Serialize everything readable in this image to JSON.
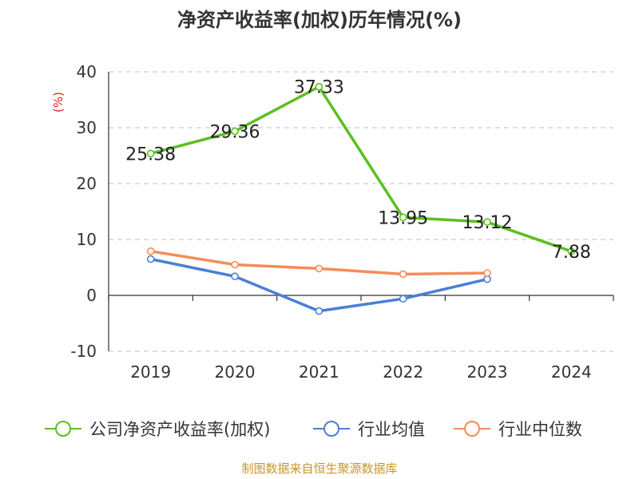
{
  "chart_data": {
    "type": "line",
    "title": "净资产收益率(加权)历年情况(%)",
    "y_unit": "(%)",
    "categories": [
      "2019",
      "2020",
      "2021",
      "2022",
      "2023",
      "2024"
    ],
    "ylim": [
      -10,
      40
    ],
    "yticks": [
      -10,
      0,
      10,
      20,
      30,
      40
    ],
    "grid": true,
    "legend_position": "bottom",
    "series": [
      {
        "name": "公司净资产收益率(加权)",
        "color": "#5cbf22",
        "values": [
          25.38,
          29.36,
          37.33,
          13.95,
          13.12,
          7.88
        ],
        "labels": [
          "25.38",
          "29.36",
          "37.33",
          "13.95",
          "13.12",
          "7.88"
        ]
      },
      {
        "name": "行业均值",
        "color": "#4a7fd6",
        "values": [
          6.5,
          3.4,
          -2.8,
          -0.6,
          2.9,
          null
        ]
      },
      {
        "name": "行业中位数",
        "color": "#f58c5a",
        "values": [
          7.9,
          5.5,
          4.8,
          3.8,
          4.0,
          null
        ]
      }
    ]
  },
  "source_text": "制图数据来自恒生聚源数据库"
}
